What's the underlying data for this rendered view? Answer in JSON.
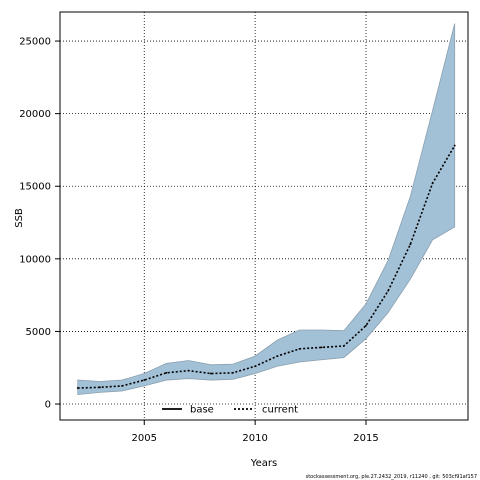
{
  "chart_data": {
    "type": "line",
    "xlabel": "Years",
    "ylabel": "SSB",
    "xlim": [
      2001.2,
      2019.6
    ],
    "ylim": [
      -1100,
      27000
    ],
    "x_ticks": [
      2005,
      2010,
      2015
    ],
    "y_ticks": [
      0,
      5000,
      10000,
      15000,
      20000,
      25000
    ],
    "grid": true,
    "legend_position": "bottom-center",
    "series": [
      {
        "name": "base",
        "style": "solid",
        "color": "#000000",
        "x": [],
        "values": []
      },
      {
        "name": "current",
        "style": "dotted",
        "color": "#000000",
        "x": [
          2002,
          2003,
          2004,
          2005,
          2006,
          2007,
          2008,
          2009,
          2010,
          2011,
          2012,
          2013,
          2014,
          2015,
          2016,
          2017,
          2018,
          2019
        ],
        "values": [
          1100,
          1150,
          1250,
          1650,
          2150,
          2300,
          2100,
          2150,
          2600,
          3300,
          3800,
          3900,
          4000,
          5400,
          7800,
          11000,
          15200,
          17800
        ],
        "band_lower": [
          650,
          800,
          900,
          1250,
          1650,
          1750,
          1650,
          1700,
          2100,
          2600,
          2900,
          3050,
          3200,
          4500,
          6300,
          8600,
          11300,
          12200
        ],
        "band_upper": [
          1650,
          1550,
          1650,
          2100,
          2800,
          3000,
          2700,
          2750,
          3300,
          4400,
          5100,
          5100,
          5050,
          6900,
          9900,
          14300,
          20200,
          26200
        ],
        "band_color": "#a3c1d6"
      }
    ],
    "footer": "stockassessment.org, ple.27.2432_2019, r11240 , git: 503cf91af157"
  }
}
